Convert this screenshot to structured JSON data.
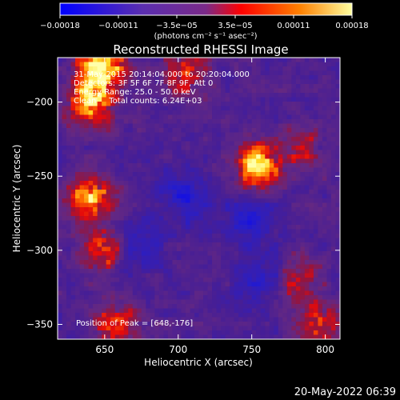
{
  "chart_data": {
    "type": "heatmap",
    "title": "Reconstructed RHESSI Image",
    "xlabel": "Heliocentric X (arcsec)",
    "ylabel": "Heliocentric Y (arcsec)",
    "xlim": [
      618,
      810
    ],
    "ylim": [
      -360,
      -170
    ],
    "x_ticks": [
      650,
      700,
      750,
      800
    ],
    "y_ticks": [
      -200,
      -250,
      -300,
      -350
    ],
    "x_tick_labels": [
      "650",
      "700",
      "750",
      "800"
    ],
    "y_tick_labels": [
      "−200",
      "−250",
      "−300",
      "−350"
    ],
    "colorbar": {
      "range": [
        -0.00018,
        0.00018
      ],
      "tick_labels": [
        "−0.00018",
        "−0.00011",
        "−3.5e−05",
        "3.5e−05",
        "0.00011",
        "0.00018"
      ],
      "unit_label": "(photons cm⁻² s⁻¹ asec⁻²)",
      "colors": [
        "#0000ff",
        "#5a2eb0",
        "#7a2a88",
        "#ff0000",
        "#ff8000",
        "#ffffa0"
      ]
    },
    "annotations": [
      "31-May-2015 20:14:04.000 to 20:20:04.000",
      "Detectors: 3F 5F 6F 7F 8F 9F, Att 0",
      "Energy Range: 25.0 - 50.0 keV",
      "Clean     Total counts: 6.24E+03",
      "Position of Peak = [648,-176]"
    ],
    "bright_sources": [
      {
        "x": 648,
        "y": -176,
        "level": 1.0
      },
      {
        "x": 640,
        "y": -200,
        "level": 0.85
      },
      {
        "x": 755,
        "y": -243,
        "level": 0.9
      },
      {
        "x": 640,
        "y": -265,
        "level": 0.8
      },
      {
        "x": 650,
        "y": -300,
        "level": 0.6
      },
      {
        "x": 658,
        "y": -350,
        "level": 0.55
      },
      {
        "x": 795,
        "y": -350,
        "level": 0.5
      },
      {
        "x": 780,
        "y": -320,
        "level": 0.45
      },
      {
        "x": 705,
        "y": -180,
        "level": 0.5
      },
      {
        "x": 785,
        "y": -230,
        "level": 0.35
      }
    ],
    "dim_regions": [
      {
        "x": 670,
        "y": -300
      },
      {
        "x": 760,
        "y": -320
      },
      {
        "x": 705,
        "y": -265
      },
      {
        "x": 750,
        "y": -280
      }
    ]
  },
  "footer": {
    "timestamp": "20-May-2022 06:39"
  }
}
